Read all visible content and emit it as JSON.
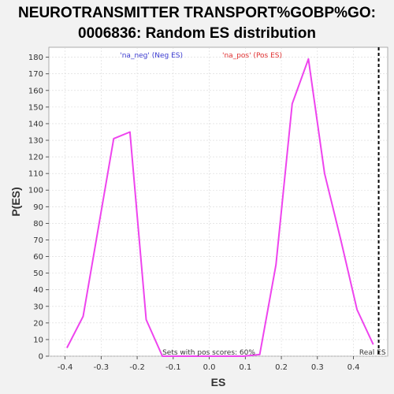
{
  "chart_data": {
    "type": "line",
    "title_line1": "NEUROTRANSMITTER TRANSPORT%GOBP%GO:",
    "title_line2": "0006836: Random ES distribution",
    "xlabel": "ES",
    "ylabel": "P(ES)",
    "xlim": [
      -0.445,
      0.495
    ],
    "ylim": [
      0,
      186
    ],
    "xticks": [
      -0.4,
      -0.3,
      -0.2,
      -0.1,
      0.0,
      0.1,
      0.2,
      0.3,
      0.4
    ],
    "xtick_labels": [
      "-0.4",
      "-0.3",
      "-0.2",
      "-0.1",
      "0.0",
      "0.1",
      "0.2",
      "0.3",
      "0.4"
    ],
    "yticks": [
      0,
      10,
      20,
      30,
      40,
      50,
      60,
      70,
      80,
      90,
      100,
      110,
      120,
      130,
      140,
      150,
      160,
      170,
      180
    ],
    "ytick_labels": [
      "0",
      "10",
      "20",
      "30",
      "40",
      "50",
      "60",
      "70",
      "80",
      "90",
      "100",
      "110",
      "120",
      "130",
      "140",
      "150",
      "160",
      "170",
      "180"
    ],
    "grid": true,
    "legend_position": "top",
    "legend": [
      {
        "label": "'na_neg' (Neg ES)",
        "color": "#3a3ad0"
      },
      {
        "label": "'na_pos' (Pos ES)",
        "color": "#e03030"
      }
    ],
    "series": [
      {
        "color": "#ee44ee",
        "x": [
          -0.395,
          -0.35,
          -0.265,
          -0.22,
          -0.175,
          -0.13,
          -0.085,
          -0.04,
          0.0,
          0.05,
          0.095,
          0.14,
          0.185,
          0.23,
          0.275,
          0.32,
          0.365,
          0.41,
          0.455
        ],
        "y": [
          5,
          24,
          131,
          135,
          22,
          0,
          0,
          0,
          0,
          0,
          0,
          1,
          55,
          152,
          179,
          110,
          70,
          28,
          7
        ]
      }
    ],
    "real_es": {
      "x": 0.47,
      "label": "Real ES"
    },
    "annotation": "Sets with pos scores: 60%",
    "colors": {
      "line": "#ee44ee",
      "real_es": "#000000",
      "grid": "#d8d8d8"
    }
  }
}
